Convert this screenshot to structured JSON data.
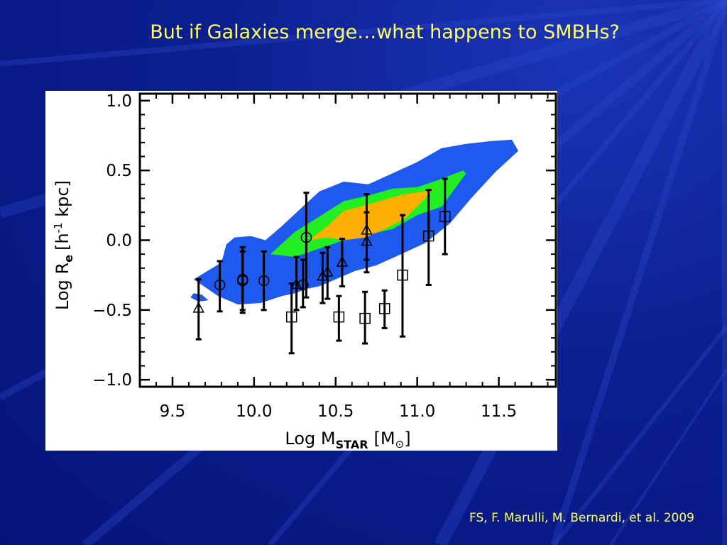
{
  "slide": {
    "title": "But if Galaxies merge…what happens to SMBHs?",
    "citation": "FS, F. Marulli, M. Bernardi, et al. 2009"
  },
  "colors": {
    "background": "#0b1f8f",
    "title_text": "#ffff66",
    "contour_outer": "#1e5af0",
    "contour_middle": "#22ee22",
    "contour_inner": "#ffb000"
  },
  "chart_data": {
    "type": "scatter",
    "xlabel": {
      "main": "Log M",
      "sub": "STAR",
      "bracket_open": "[M",
      "sun": "⊙",
      "bracket_close": "]"
    },
    "ylabel": {
      "main": "Log R",
      "sub": "e",
      "bracket_open": "[h",
      "sup": "-1",
      "rest": " kpc]"
    },
    "xlim": [
      9.3,
      11.85
    ],
    "ylim": [
      -1.05,
      1.05
    ],
    "x_ticks": [
      9.5,
      10.0,
      10.5,
      11.0,
      11.5
    ],
    "x_tick_labels": [
      "9.5",
      "10.0",
      "10.5",
      "11.0",
      "11.5"
    ],
    "y_ticks": [
      1.0,
      0.5,
      0.0,
      -0.5,
      -1.0
    ],
    "y_tick_labels": [
      "1.0",
      "0.5",
      "0.0",
      "−0.5",
      "−1.0"
    ],
    "contours": [
      {
        "level": "outer",
        "color": "#1e5af0",
        "x": [
          9.63,
          9.78,
          9.9,
          10.04,
          10.17,
          10.25,
          10.32,
          10.4,
          10.5,
          10.62,
          10.75,
          10.9,
          11.05,
          11.2,
          11.33,
          11.48,
          11.62,
          11.58,
          11.45,
          11.3,
          11.15,
          11.0,
          10.85,
          10.7,
          10.55,
          10.4,
          10.27,
          10.17,
          10.07,
          9.98,
          9.88,
          9.83,
          9.8
        ],
        "y": [
          -0.28,
          -0.4,
          -0.46,
          -0.45,
          -0.4,
          -0.38,
          -0.35,
          -0.33,
          -0.28,
          -0.22,
          -0.18,
          -0.1,
          -0.02,
          0.12,
          0.3,
          0.49,
          0.64,
          0.72,
          0.71,
          0.69,
          0.66,
          0.56,
          0.48,
          0.4,
          0.42,
          0.35,
          0.21,
          0.1,
          0.0,
          0.03,
          0.02,
          -0.03,
          -0.16
        ]
      },
      {
        "level": "middle",
        "color": "#22ee22",
        "x": [
          10.1,
          10.25,
          10.4,
          10.55,
          10.7,
          10.85,
          11.0,
          11.15,
          11.3,
          11.28,
          11.15,
          11.0,
          10.85,
          10.7,
          10.55,
          10.4,
          10.25
        ],
        "y": [
          -0.1,
          -0.12,
          -0.06,
          0.0,
          0.04,
          0.08,
          0.18,
          0.24,
          0.48,
          0.5,
          0.44,
          0.38,
          0.37,
          0.32,
          0.28,
          0.17,
          0.06
        ]
      },
      {
        "level": "inner",
        "color": "#ffb000",
        "x": [
          10.34,
          10.45,
          10.55,
          10.68,
          10.8,
          10.92,
          11.05,
          11.1,
          11.05,
          10.92,
          10.8,
          10.68,
          10.55,
          10.45,
          10.38
        ],
        "y": [
          0.0,
          0.02,
          0.0,
          0.02,
          0.08,
          0.15,
          0.3,
          0.37,
          0.35,
          0.33,
          0.29,
          0.25,
          0.21,
          0.1,
          0.04
        ]
      },
      {
        "level": "small",
        "color": "#1e5af0",
        "x": [
          9.61,
          9.66,
          9.72,
          9.68,
          9.63
        ],
        "y": [
          -0.41,
          -0.44,
          -0.43,
          -0.39,
          -0.38
        ]
      }
    ],
    "series": [
      {
        "marker": "circle",
        "points": [
          {
            "x": 9.79,
            "y": -0.32,
            "lo": -0.51,
            "hi": -0.15
          },
          {
            "x": 9.93,
            "y": -0.29,
            "lo": -0.52,
            "hi": -0.05
          },
          {
            "x": 9.93,
            "y": -0.28,
            "lo": -0.5,
            "hi": -0.08
          },
          {
            "x": 10.06,
            "y": -0.29,
            "lo": -0.5,
            "hi": -0.08
          },
          {
            "x": 10.3,
            "y": -0.32,
            "lo": -0.48,
            "hi": -0.14
          },
          {
            "x": 10.32,
            "y": 0.02,
            "lo": -0.41,
            "hi": 0.34
          }
        ]
      },
      {
        "marker": "triangle",
        "points": [
          {
            "x": 9.66,
            "y": -0.49,
            "lo": -0.71,
            "hi": -0.28
          },
          {
            "x": 10.26,
            "y": -0.32,
            "lo": -0.5,
            "hi": -0.12
          },
          {
            "x": 10.42,
            "y": -0.26,
            "lo": -0.45,
            "hi": -0.09
          },
          {
            "x": 10.45,
            "y": -0.23,
            "lo": -0.42,
            "hi": -0.05
          },
          {
            "x": 10.54,
            "y": -0.16,
            "lo": -0.33,
            "hi": 0.01
          },
          {
            "x": 10.69,
            "y": 0.07,
            "lo": -0.14,
            "hi": 0.33
          },
          {
            "x": 10.69,
            "y": -0.01,
            "lo": -0.23,
            "hi": 0.2
          }
        ]
      },
      {
        "marker": "square",
        "points": [
          {
            "x": 10.23,
            "y": -0.55,
            "lo": -0.81,
            "hi": -0.31
          },
          {
            "x": 10.52,
            "y": -0.55,
            "lo": -0.72,
            "hi": -0.4
          },
          {
            "x": 10.68,
            "y": -0.56,
            "lo": -0.74,
            "hi": -0.37
          },
          {
            "x": 10.8,
            "y": -0.49,
            "lo": -0.63,
            "hi": -0.36
          },
          {
            "x": 10.91,
            "y": -0.25,
            "lo": -0.69,
            "hi": 0.18
          },
          {
            "x": 11.07,
            "y": 0.03,
            "lo": -0.32,
            "hi": 0.36
          },
          {
            "x": 11.17,
            "y": 0.17,
            "lo": -0.1,
            "hi": 0.44
          }
        ]
      }
    ]
  }
}
